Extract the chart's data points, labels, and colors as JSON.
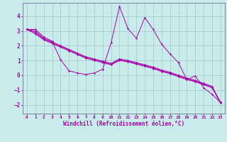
{
  "xlabel": "Windchill (Refroidissement éolien,°C)",
  "background_color": "#c8ecec",
  "grid_color": "#a0c8c8",
  "line_color": "#aa00aa",
  "spine_color": "#8080a0",
  "xlim": [
    -0.5,
    23.5
  ],
  "ylim": [
    -2.6,
    4.9
  ],
  "yticks": [
    -2,
    -1,
    0,
    1,
    2,
    3,
    4
  ],
  "xticks": [
    0,
    1,
    2,
    3,
    4,
    5,
    6,
    7,
    8,
    9,
    10,
    11,
    12,
    13,
    14,
    15,
    16,
    17,
    18,
    19,
    20,
    21,
    22,
    23
  ],
  "series_spiky": [
    3.1,
    3.1,
    2.6,
    2.3,
    1.05,
    0.3,
    0.15,
    0.05,
    0.15,
    0.4,
    2.2,
    4.65,
    3.15,
    2.5,
    3.9,
    3.1,
    2.1,
    1.45,
    0.85,
    -0.3,
    -0.05,
    -0.85,
    -1.3,
    -1.85
  ],
  "series_straight1": [
    3.1,
    3.0,
    2.5,
    2.25,
    2.0,
    1.75,
    1.5,
    1.25,
    1.1,
    0.95,
    0.8,
    1.1,
    1.0,
    0.85,
    0.7,
    0.55,
    0.35,
    0.2,
    0.0,
    -0.2,
    -0.35,
    -0.55,
    -0.75,
    -1.85
  ],
  "series_straight2": [
    3.1,
    2.9,
    2.45,
    2.2,
    1.95,
    1.7,
    1.45,
    1.2,
    1.05,
    0.9,
    0.75,
    1.05,
    0.95,
    0.8,
    0.65,
    0.5,
    0.3,
    0.15,
    -0.05,
    -0.25,
    -0.4,
    -0.6,
    -0.8,
    -1.9
  ],
  "series_straight3": [
    3.1,
    2.8,
    2.4,
    2.15,
    1.9,
    1.65,
    1.4,
    1.15,
    1.0,
    0.85,
    0.7,
    1.0,
    0.9,
    0.75,
    0.6,
    0.45,
    0.25,
    0.1,
    -0.1,
    -0.3,
    -0.45,
    -0.65,
    -0.85,
    -1.85
  ]
}
